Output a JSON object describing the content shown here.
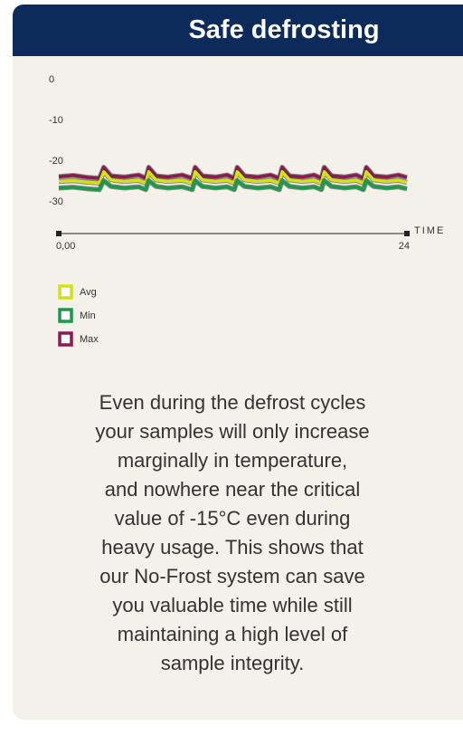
{
  "title": "Safe defrosting",
  "chart_data": {
    "type": "line",
    "x": [
      0,
      1,
      2,
      2.8,
      3.1,
      3.6,
      4.5,
      5.5,
      6,
      6.2,
      6.7,
      7.5,
      8.5,
      9.2,
      9.4,
      9.9,
      10.8,
      11.6,
      12.1,
      12.3,
      12.8,
      13.7,
      14.6,
      15.2,
      15.4,
      15.9,
      16.8,
      17.6,
      18.1,
      18.3,
      18.8,
      19.7,
      20.5,
      21,
      21.2,
      21.7,
      22.6,
      23.4,
      24
    ],
    "series": [
      {
        "name": "Max",
        "color": "#8a1a50",
        "values": [
          -23.8,
          -23.5,
          -24,
          -24.2,
          -21.5,
          -23.6,
          -23.9,
          -23.4,
          -24.2,
          -21.5,
          -23.6,
          -23.9,
          -23.4,
          -24.2,
          -21.5,
          -23.6,
          -23.9,
          -23.4,
          -24.2,
          -21.5,
          -23.6,
          -23.9,
          -23.4,
          -24.2,
          -21.5,
          -23.6,
          -23.9,
          -23.4,
          -24.2,
          -21.5,
          -23.6,
          -23.9,
          -23.4,
          -24.2,
          -21.5,
          -23.6,
          -23.9,
          -23.4,
          -24
        ]
      },
      {
        "name": "Avg",
        "color": "#d4e01a",
        "values": [
          -25,
          -24.8,
          -25.2,
          -25.4,
          -22.6,
          -24.6,
          -25,
          -24.7,
          -25.4,
          -22.6,
          -24.6,
          -25,
          -24.7,
          -25.4,
          -22.6,
          -24.6,
          -25,
          -24.7,
          -25.4,
          -22.6,
          -24.6,
          -25,
          -24.7,
          -25.4,
          -22.6,
          -24.6,
          -25,
          -24.7,
          -25.4,
          -22.6,
          -24.6,
          -25,
          -24.7,
          -25.4,
          -22.6,
          -24.6,
          -25,
          -24.7,
          -25.2
        ]
      },
      {
        "name": "Min",
        "color": "#1a9a4a",
        "values": [
          -26.6,
          -26.4,
          -26.8,
          -27,
          -24.8,
          -26.2,
          -26.6,
          -26.3,
          -27,
          -24.8,
          -26.2,
          -26.6,
          -26.3,
          -27,
          -24.8,
          -26.2,
          -26.6,
          -26.3,
          -27,
          -24.8,
          -26.2,
          -26.6,
          -26.3,
          -27,
          -24.8,
          -26.2,
          -26.6,
          -26.3,
          -27,
          -24.8,
          -26.2,
          -26.6,
          -26.3,
          -27,
          -24.8,
          -26.2,
          -26.6,
          -26.3,
          -26.8
        ]
      }
    ],
    "legend_order": [
      "Avg",
      "Min",
      "Max"
    ],
    "xlim": [
      0,
      24
    ],
    "xticks": [
      {
        "value": 0,
        "label": "0,00"
      },
      24
    ],
    "x_label": "TIME",
    "ylim": [
      -30,
      0
    ],
    "yticks": [
      0,
      -10,
      -20,
      -30
    ]
  },
  "body_lines": [
    "Even during the defrost cycles",
    "your samples will only increase",
    "marginally in temperature,",
    "and nowhere near the critical",
    "value of -15°C even during",
    "heavy usage. This shows that",
    "our No-Frost system can save",
    "you valuable time while still",
    "maintaining a high level of",
    "sample integrity."
  ]
}
